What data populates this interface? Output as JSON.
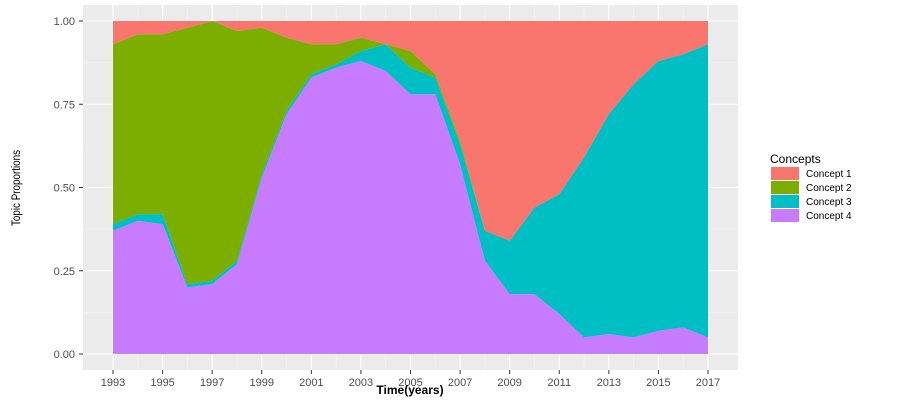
{
  "chart_data": {
    "type": "area",
    "stacked": true,
    "normalized": true,
    "xlabel": "Time(years)",
    "ylabel": "Topic Proportions",
    "ylim": [
      0,
      1
    ],
    "xlim": [
      1993,
      2017
    ],
    "x_ticks": [
      1993,
      1995,
      1997,
      1999,
      2001,
      2003,
      2005,
      2007,
      2009,
      2011,
      2013,
      2015,
      2017
    ],
    "y_ticks": [
      0,
      0.25,
      0.5,
      0.75,
      1
    ],
    "y_tick_labels": [
      "0.00",
      "0.25",
      "0.50",
      "0.75",
      "1.00"
    ],
    "grid": true,
    "legend_position": "right",
    "legend_title": "Concepts",
    "x": [
      1993,
      1994,
      1995,
      1996,
      1997,
      1998,
      1999,
      2000,
      2001,
      2002,
      2003,
      2004,
      2005,
      2006,
      2007,
      2008,
      2009,
      2010,
      2011,
      2012,
      2013,
      2014,
      2015,
      2016,
      2017
    ],
    "series": [
      {
        "name": "Concept 4",
        "color": "#C77CFF",
        "values": [
          0.37,
          0.4,
          0.39,
          0.2,
          0.21,
          0.27,
          0.53,
          0.72,
          0.83,
          0.86,
          0.88,
          0.85,
          0.78,
          0.78,
          0.57,
          0.28,
          0.18,
          0.18,
          0.12,
          0.05,
          0.06,
          0.05,
          0.07,
          0.08,
          0.05
        ]
      },
      {
        "name": "Concept 3",
        "color": "#00BFC4",
        "values": [
          0.02,
          0.02,
          0.03,
          0.01,
          0.01,
          0.01,
          0.01,
          0.01,
          0.01,
          0.01,
          0.03,
          0.08,
          0.08,
          0.05,
          0.06,
          0.09,
          0.16,
          0.26,
          0.36,
          0.54,
          0.66,
          0.76,
          0.81,
          0.82,
          0.88
        ]
      },
      {
        "name": "Concept 2",
        "color": "#7CAE00",
        "values": [
          0.54,
          0.54,
          0.54,
          0.77,
          0.78,
          0.69,
          0.44,
          0.22,
          0.09,
          0.06,
          0.04,
          0.0,
          0.05,
          0.01,
          0.01,
          0.0,
          0.0,
          0.0,
          0.0,
          0.0,
          0.0,
          0.0,
          0.0,
          0.0,
          0.0
        ]
      },
      {
        "name": "Concept 1",
        "color": "#F8766D",
        "values": [
          0.07,
          0.04,
          0.04,
          0.02,
          0.0,
          0.03,
          0.02,
          0.05,
          0.07,
          0.07,
          0.05,
          0.07,
          0.09,
          0.16,
          0.36,
          0.63,
          0.66,
          0.56,
          0.52,
          0.41,
          0.28,
          0.19,
          0.12,
          0.1,
          0.07
        ]
      }
    ],
    "legend_order": [
      "Concept 1",
      "Concept 2",
      "Concept 3",
      "Concept 4"
    ]
  },
  "colors": {
    "panel_background": "#EBEBEB",
    "grid_major": "#FFFFFF",
    "grid_minor": "#F5F5F5"
  }
}
